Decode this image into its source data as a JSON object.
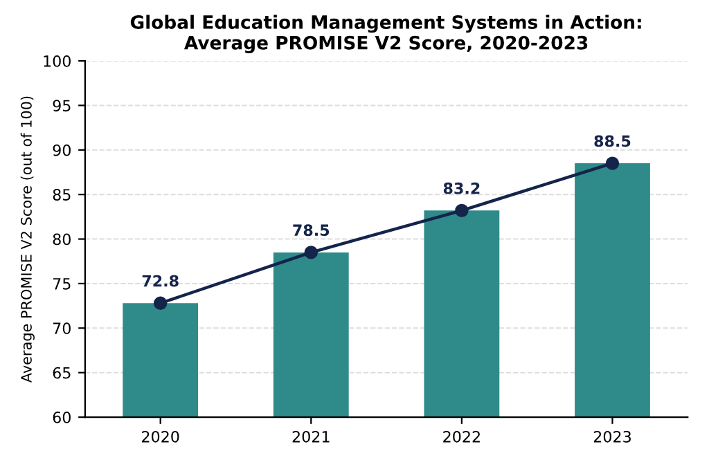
{
  "chart_data": {
    "type": "bar",
    "title": "Global Education Management Systems in Action:\nAverage PROMISE V2 Score, 2020-2023",
    "ylabel": "Average PROMISE V2 Score (out of 100)",
    "categories": [
      "2020",
      "2021",
      "2022",
      "2023"
    ],
    "series": [
      {
        "color": "#2e8b89",
        "values": [
          72.8,
          78.5,
          83.2,
          88.5
        ]
      },
      {
        "type": "line",
        "color": "#14244a",
        "values": [
          72.8,
          78.5,
          83.2,
          88.5
        ],
        "marker": "circle",
        "data_labels": true
      }
    ],
    "ylim": [
      60,
      100
    ],
    "yticks": [
      60,
      65,
      70,
      75,
      80,
      85,
      90,
      95,
      100
    ],
    "grid": "y"
  }
}
